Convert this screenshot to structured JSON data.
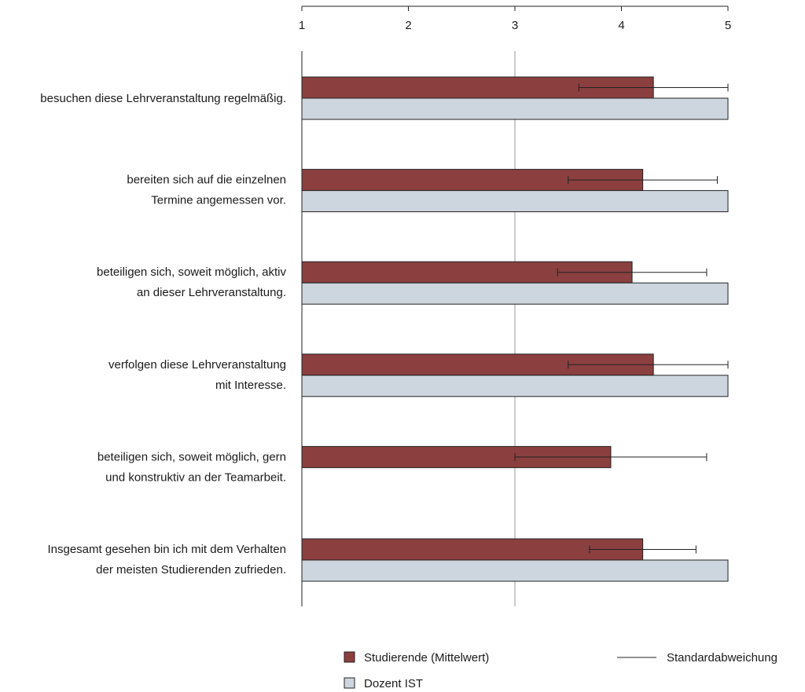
{
  "chart_data": {
    "type": "bar",
    "orientation": "horizontal",
    "x_ticks": [
      "1",
      "2",
      "3",
      "4",
      "5"
    ],
    "xlim": [
      1,
      5
    ],
    "reference_line": 3,
    "categories": [
      [
        "besuchen diese Lehrveranstaltung regelmäßig."
      ],
      [
        "bereiten sich auf die einzelnen",
        "Termine angemessen vor."
      ],
      [
        "beteiligen sich, soweit möglich, aktiv",
        "an dieser Lehrveranstaltung."
      ],
      [
        "verfolgen diese Lehrveranstaltung",
        "mit Interesse."
      ],
      [
        "beteiligen sich, soweit möglich, gern",
        "und konstruktiv an der Teamarbeit."
      ],
      [
        "Insgesamt gesehen bin ich mit dem Verhalten",
        "der meisten Studierenden zufrieden."
      ]
    ],
    "series": [
      {
        "name": "Studierende (Mittelwert)",
        "color": "#8b3f3f",
        "values": [
          4.3,
          4.2,
          4.1,
          4.3,
          3.9,
          4.2
        ],
        "error_low": [
          3.6,
          3.5,
          3.4,
          3.5,
          3.0,
          3.7
        ],
        "error_high": [
          5.0,
          4.9,
          4.8,
          5.0,
          4.8,
          4.7
        ]
      },
      {
        "name": "Dozent IST",
        "color": "#cdd5de",
        "values": [
          5,
          5,
          5,
          5,
          null,
          5
        ]
      }
    ],
    "legend": {
      "items": [
        "Studierende (Mittelwert)",
        "Dozent IST"
      ],
      "line_label": "Standardabweichung",
      "placement": "bottom"
    }
  }
}
